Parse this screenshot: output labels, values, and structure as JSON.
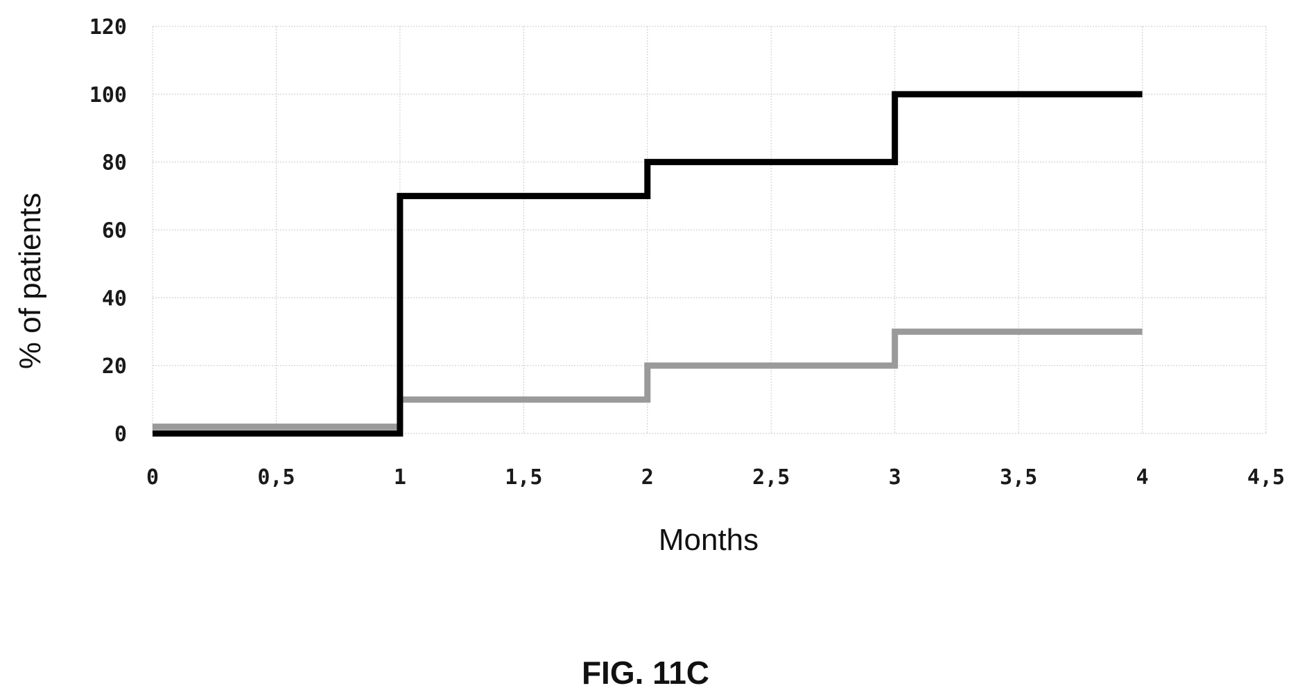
{
  "figure_label": "FIG. 11C",
  "chart_data": {
    "type": "line",
    "step": true,
    "xlabel": "Months",
    "ylabel": "% of patients",
    "xlim": [
      0,
      4.5
    ],
    "ylim": [
      0,
      120
    ],
    "x_ticks": [
      "0",
      "0,5",
      "1",
      "1,5",
      "2",
      "2,5",
      "3",
      "3,5",
      "4",
      "4,5"
    ],
    "y_ticks": [
      "0",
      "20",
      "40",
      "60",
      "80",
      "100",
      "120"
    ],
    "grid": true,
    "legend": "none",
    "series": [
      {
        "color": "#000000",
        "x": [
          0,
          1,
          2,
          3,
          4
        ],
        "y": [
          0,
          70,
          80,
          100,
          100
        ]
      },
      {
        "color": "#9a9a9a",
        "x": [
          0,
          1,
          2,
          3,
          4
        ],
        "y": [
          2,
          10,
          20,
          30,
          30
        ]
      }
    ]
  }
}
